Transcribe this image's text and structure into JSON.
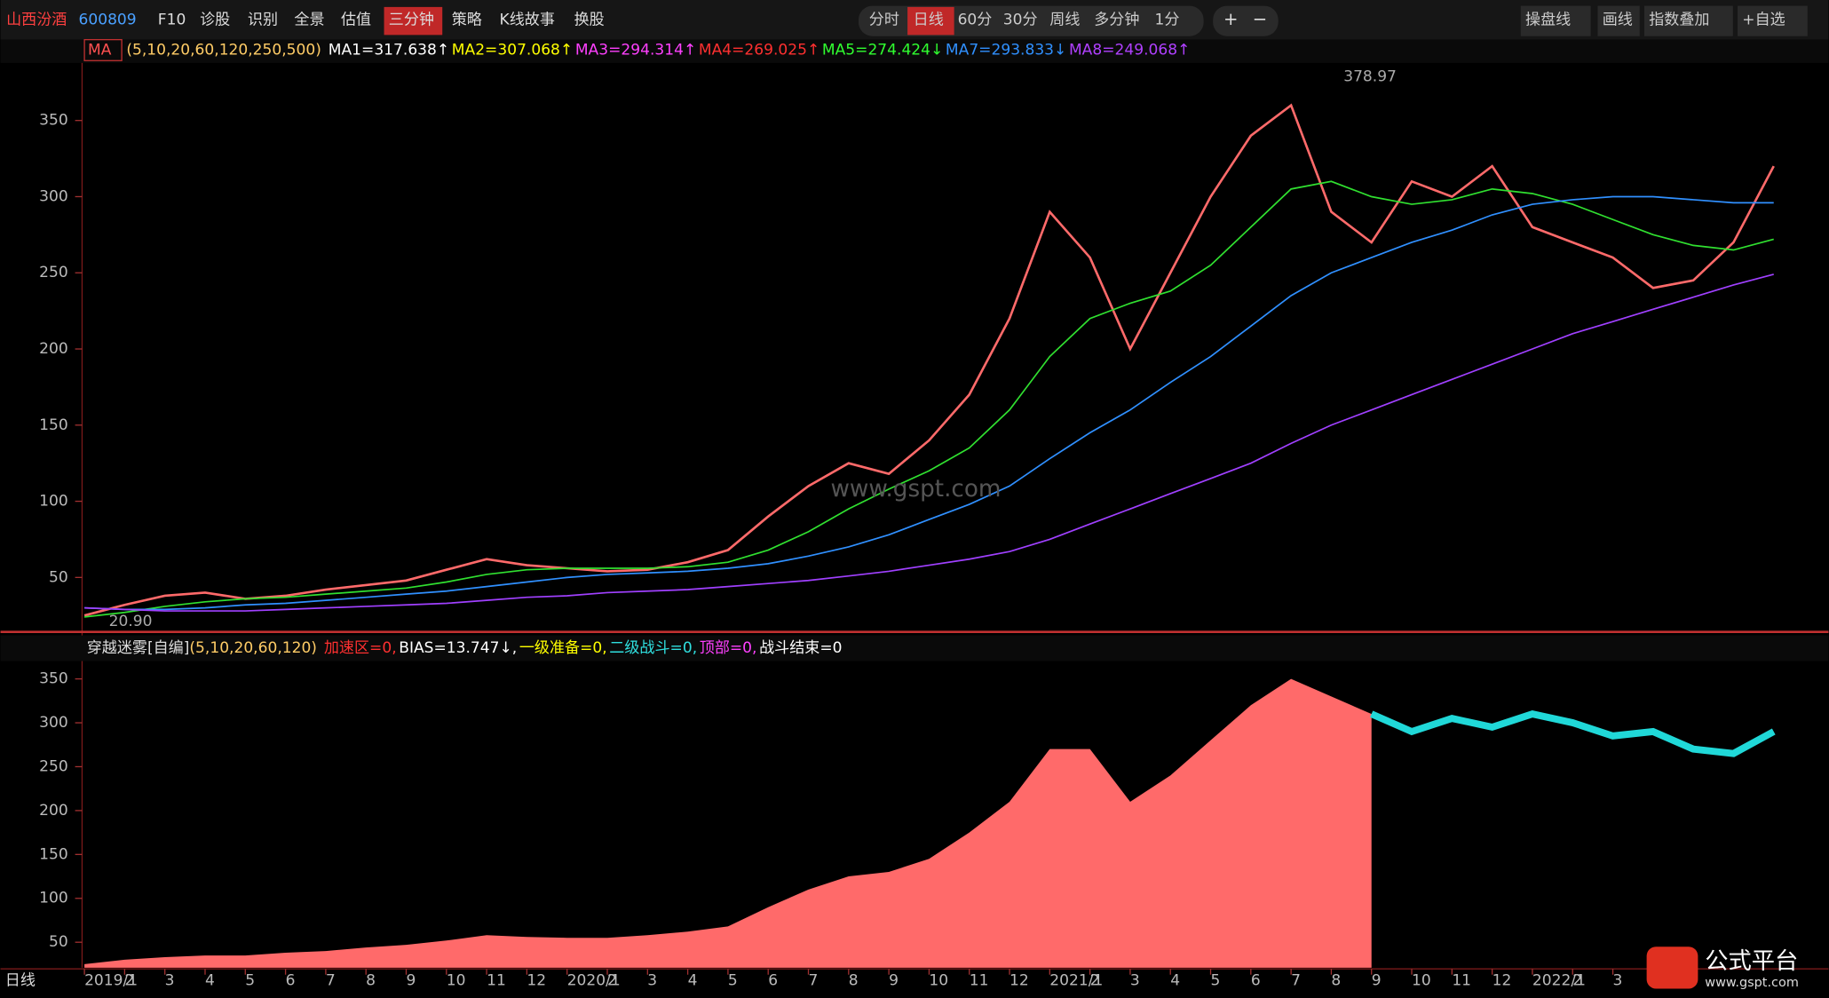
{
  "toolbar": {
    "stock_name": "山西汾酒",
    "stock_code": "600809",
    "tabs": [
      "F10",
      "诊股",
      "识别",
      "全景",
      "估值",
      "三分钟",
      "策略",
      "K线故事",
      "换股"
    ],
    "periods": [
      "分时",
      "日线",
      "60分",
      "30分",
      "周线",
      "多分钟",
      "1分"
    ],
    "zoom": [
      "+",
      "−"
    ],
    "tools": [
      "操盘线",
      "画线",
      "指数叠加",
      "+自选"
    ]
  },
  "chart_data": [
    {
      "type": "line",
      "indicator": "MA",
      "params": "(5,10,20,60,120,250,500)",
      "legend": [
        {
          "label": "MA1=317.638↑",
          "color": "#ffffff"
        },
        {
          "label": "MA2=307.068↑",
          "color": "#ffff00"
        },
        {
          "label": "MA3=294.314↑",
          "color": "#ff40ff"
        },
        {
          "label": "MA4=269.025↑",
          "color": "#ff3030"
        },
        {
          "label": "MA5=274.424↓",
          "color": "#30ff30"
        },
        {
          "label": "MA7=293.833↓",
          "color": "#3090ff"
        },
        {
          "label": "MA8=249.068↑",
          "color": "#b040ff"
        }
      ],
      "series": [
        {
          "color": "#ff6a6a",
          "values": [
            25,
            32,
            38,
            40,
            36,
            38,
            42,
            45,
            48,
            55,
            62,
            58,
            56,
            54,
            55,
            60,
            68,
            90,
            110,
            125,
            118,
            140,
            170,
            220,
            290,
            260,
            200,
            250,
            300,
            340,
            360,
            290,
            270,
            310,
            300,
            320,
            280,
            270,
            260,
            240,
            245,
            270,
            320
          ]
        },
        {
          "color": "#30e030",
          "values": [
            24,
            27,
            31,
            34,
            36,
            37,
            39,
            41,
            43,
            47,
            52,
            55,
            56,
            56,
            56,
            57,
            60,
            68,
            80,
            95,
            108,
            120,
            135,
            160,
            195,
            220,
            230,
            238,
            255,
            280,
            305,
            310,
            300,
            295,
            298,
            305,
            302,
            295,
            285,
            275,
            268,
            265,
            272
          ]
        },
        {
          "color": "#3090ff",
          "values": [
            30,
            29,
            29,
            30,
            32,
            33,
            35,
            37,
            39,
            41,
            44,
            47,
            50,
            52,
            53,
            54,
            56,
            59,
            64,
            70,
            78,
            88,
            98,
            110,
            128,
            145,
            160,
            178,
            195,
            215,
            235,
            250,
            260,
            270,
            278,
            288,
            295,
            298,
            300,
            300,
            298,
            296,
            296
          ]
        },
        {
          "color": "#a040ff",
          "values": [
            30,
            29,
            28,
            28,
            28,
            29,
            30,
            31,
            32,
            33,
            35,
            37,
            38,
            40,
            41,
            42,
            44,
            46,
            48,
            51,
            54,
            58,
            62,
            67,
            75,
            85,
            95,
            105,
            115,
            125,
            138,
            150,
            160,
            170,
            180,
            190,
            200,
            210,
            218,
            226,
            234,
            242,
            249
          ]
        }
      ],
      "ylim": [
        15,
        387
      ],
      "yticks": [
        50,
        100,
        150,
        200,
        250,
        300,
        350
      ],
      "annotations": [
        "378.97",
        "20.90"
      ],
      "watermark": "www.gspt.com"
    },
    {
      "type": "area",
      "title": "穿越迷雾[自编]",
      "params": "(5,10,20,60,120)",
      "legend": [
        {
          "label": "加速区=0,",
          "color": "#ff3030"
        },
        {
          "label": "BIAS=13.747↓,",
          "color": "#ffffff"
        },
        {
          "label": "一级准备=0,",
          "color": "#ffff00"
        },
        {
          "label": "二级战斗=0,",
          "color": "#30e0e0"
        },
        {
          "label": "顶部=0,",
          "color": "#ff40ff"
        },
        {
          "label": "战斗结束=0",
          "color": "#ffffff"
        }
      ],
      "categories": [
        "2019/1",
        "2",
        "3",
        "4",
        "5",
        "6",
        "7",
        "8",
        "9",
        "10",
        "11",
        "12",
        "2020/1",
        "2",
        "3",
        "4",
        "5",
        "6",
        "7",
        "8",
        "9",
        "10",
        "11",
        "12",
        "2021/1",
        "2",
        "3",
        "4",
        "5",
        "6",
        "7",
        "8",
        "9",
        "10",
        "11",
        "12",
        "2022/1",
        "2",
        "3",
        null,
        null,
        null,
        null
      ],
      "series": [
        {
          "color": "#ff6a6a",
          "values": [
            25,
            30,
            33,
            35,
            35,
            38,
            40,
            44,
            47,
            52,
            58,
            56,
            55,
            55,
            58,
            62,
            68,
            90,
            110,
            125,
            130,
            145,
            175,
            210,
            270,
            270,
            210,
            240,
            280,
            320,
            350,
            330,
            310,
            null,
            null,
            null,
            null,
            null,
            null,
            null,
            null,
            null,
            null
          ]
        },
        {
          "color": "#20d8d8",
          "values": [
            null,
            null,
            null,
            null,
            null,
            null,
            null,
            null,
            null,
            null,
            null,
            null,
            null,
            null,
            null,
            null,
            null,
            null,
            null,
            null,
            null,
            null,
            null,
            null,
            null,
            null,
            null,
            null,
            null,
            null,
            null,
            null,
            310,
            290,
            305,
            295,
            310,
            300,
            285,
            290,
            270,
            265,
            290
          ]
        }
      ],
      "ylim": [
        21,
        369
      ],
      "yticks": [
        50,
        100,
        150,
        200,
        250,
        300,
        350
      ]
    }
  ],
  "period_label": "日线",
  "logo": {
    "name": "公式平台",
    "url": "www.gspt.com"
  }
}
